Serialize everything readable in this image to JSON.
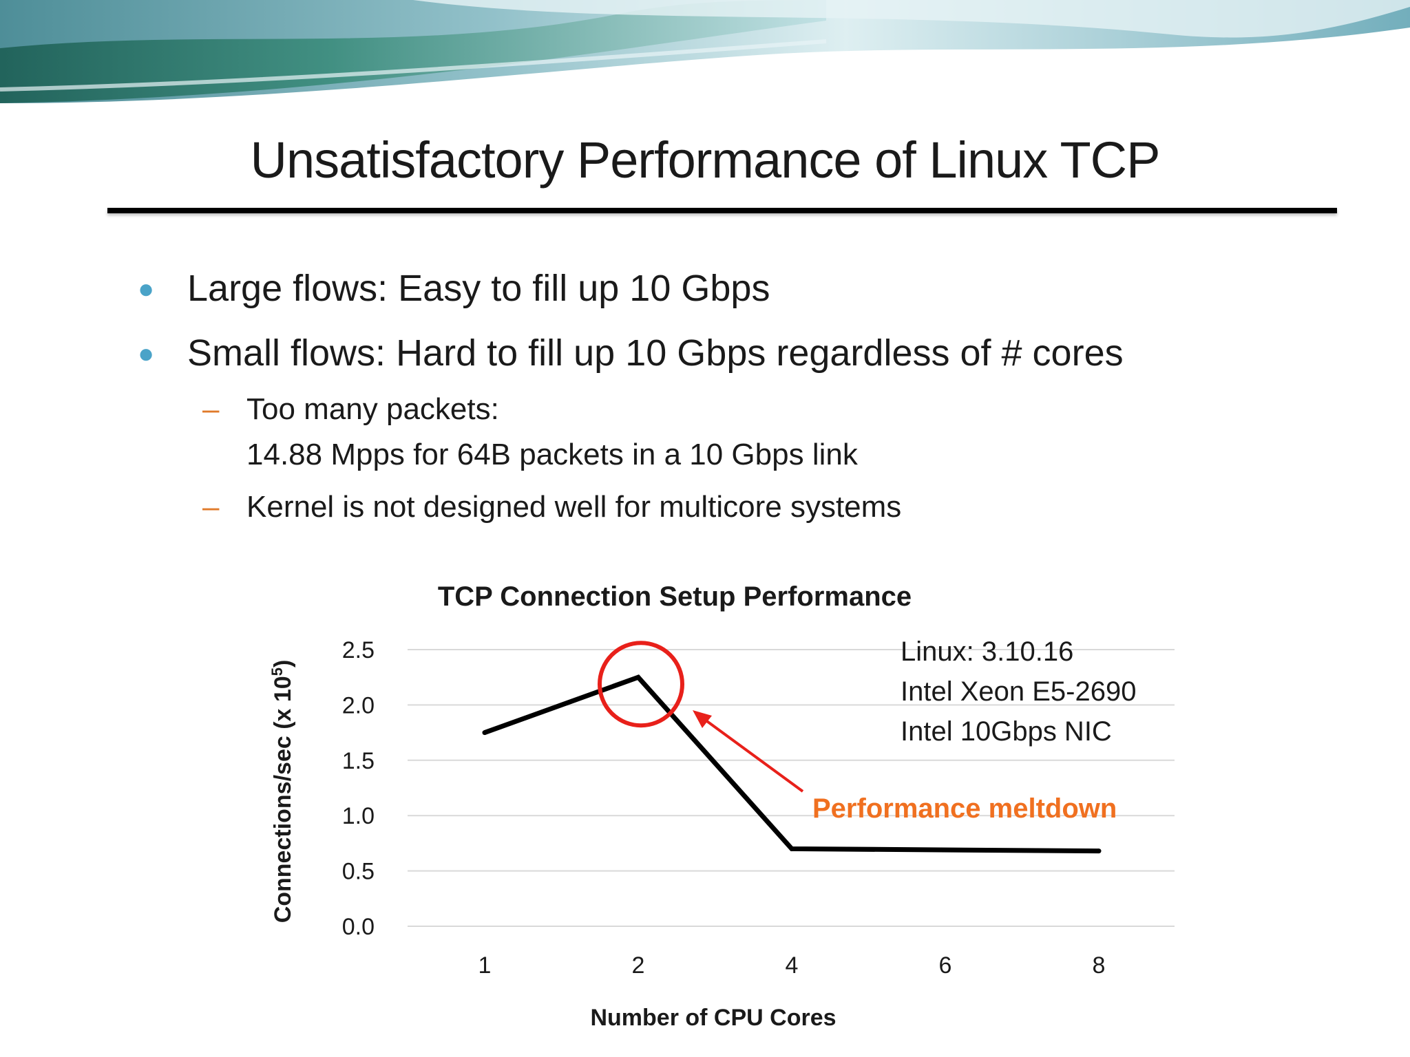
{
  "slide": {
    "title": "Unsatisfactory Performance of Linux TCP",
    "bullets": [
      {
        "text": "Large flows: Easy to fill up 10 Gbps"
      },
      {
        "text": "Small flows: Hard to fill up 10 Gbps regardless of # cores"
      }
    ],
    "sub_bullets": [
      {
        "line1": "Too many packets:",
        "line2": "14.88 Mpps for 64B packets in a 10 Gbps link"
      },
      {
        "line1": "Kernel is not designed well for multicore systems",
        "line2": ""
      }
    ]
  },
  "chart_data": {
    "type": "line",
    "title": "TCP Connection Setup Performance",
    "xlabel": "Number of CPU Cores",
    "ylabel": "Connections/sec (x 10",
    "ylabel_sup": "5",
    "ylabel_end": ")",
    "categories": [
      "1",
      "2",
      "4",
      "6",
      "8"
    ],
    "x": [
      1,
      2,
      4,
      8
    ],
    "y": [
      1.75,
      2.25,
      0.7,
      0.68
    ],
    "ylim": [
      0,
      2.5
    ],
    "yticks": [
      "0.0",
      "0.5",
      "1.0",
      "1.5",
      "2.0",
      "2.5"
    ],
    "grid": true,
    "info_lines": [
      "Linux: 3.10.16",
      "Intel Xeon E5-2690",
      "Intel 10Gbps NIC"
    ],
    "annotation": {
      "text": "Performance meltdown",
      "point_x": 2,
      "point_y": 2.25
    },
    "colors": {
      "line": "#000000",
      "annotation": "#e8201a",
      "annotation_text": "#f07020",
      "grid": "#d9d9d9"
    }
  }
}
